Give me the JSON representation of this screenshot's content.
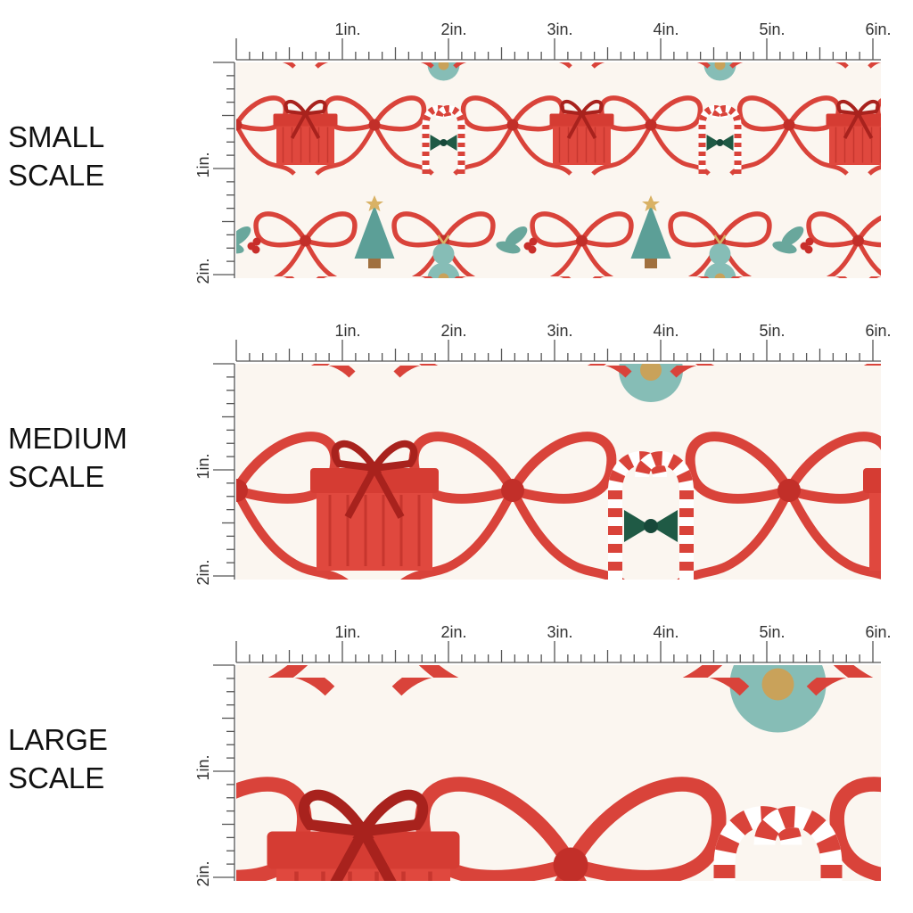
{
  "rows": [
    {
      "label": [
        "SMALL",
        "SCALE"
      ],
      "ruler_top": [
        "1in.",
        "2in.",
        "3in.",
        "4in.",
        "5in.",
        "6in."
      ],
      "ruler_side": [
        "1in.",
        "2in."
      ]
    },
    {
      "label": [
        "MEDIUM",
        "SCALE"
      ],
      "ruler_top": [
        "1in.",
        "2in.",
        "3in.",
        "4in.",
        "5in.",
        "6in."
      ],
      "ruler_side": [
        "1in.",
        "2in."
      ]
    },
    {
      "label": [
        "LARGE",
        "SCALE"
      ],
      "ruler_top": [
        "1in.",
        "2in.",
        "3in.",
        "4in.",
        "5in.",
        "6in."
      ],
      "ruler_side": [
        "1in.",
        "2in."
      ]
    }
  ]
}
